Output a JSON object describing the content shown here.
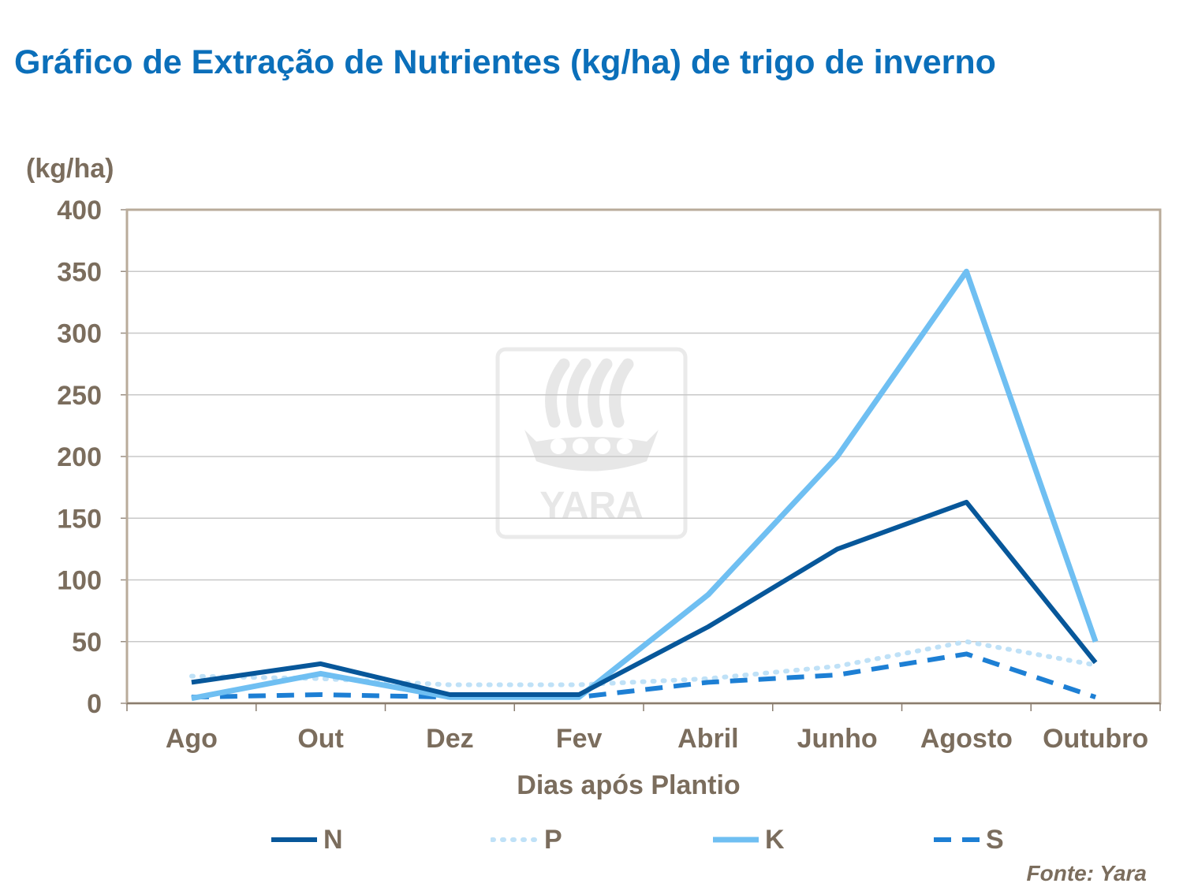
{
  "chart_data": {
    "type": "line",
    "title": "Gráfico de Extração de Nutrientes (kg/ha) de trigo de inverno",
    "ylabel": "(kg/ha)",
    "xlabel": "Dias após Plantio",
    "categories": [
      "Ago",
      "Out",
      "Dez",
      "Fev",
      "Abril",
      "Junho",
      "Agosto",
      "Outubro"
    ],
    "ylim": [
      0,
      400
    ],
    "yticks": [
      0,
      50,
      100,
      150,
      200,
      250,
      300,
      350,
      400
    ],
    "grid": true,
    "legend": "bottom",
    "series": [
      {
        "name": "N",
        "color": "#07579a",
        "style": "solid",
        "values": [
          17,
          32,
          7,
          7,
          62,
          125,
          163,
          33
        ]
      },
      {
        "name": "P",
        "color": "#bfe1f7",
        "style": "dotted",
        "values": [
          22,
          20,
          15,
          15,
          20,
          30,
          50,
          31
        ]
      },
      {
        "name": "K",
        "color": "#6fbff2",
        "style": "solid",
        "values": [
          4,
          24,
          5,
          5,
          88,
          200,
          350,
          50
        ]
      },
      {
        "name": "S",
        "color": "#1d7fd4",
        "style": "dashed",
        "values": [
          5,
          7,
          5,
          5,
          17,
          23,
          40,
          5
        ]
      }
    ],
    "watermark": "YARA",
    "source": "Fonte: Yara"
  }
}
